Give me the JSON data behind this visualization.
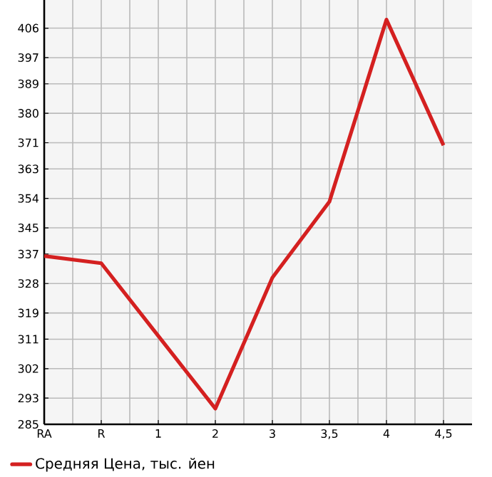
{
  "chart_data": {
    "type": "line",
    "categories": [
      "RA",
      "R",
      "1",
      "2",
      "3",
      "3,5",
      "4",
      "4,5"
    ],
    "series": [
      {
        "name": "Средняя Цена, тыс. йен",
        "color": "#d42020",
        "values": [
          336.4,
          334.2,
          312,
          289.8,
          329.8,
          353,
          408.6,
          370.2
        ]
      }
    ],
    "ylim": [
      285,
      414.6
    ],
    "yticks": [
      285,
      293,
      302,
      311,
      319,
      328,
      337,
      345,
      354,
      363,
      371,
      380,
      389,
      397,
      406
    ],
    "grid": true,
    "legend": "bottom left",
    "marker": "none",
    "line_style": "solid"
  }
}
